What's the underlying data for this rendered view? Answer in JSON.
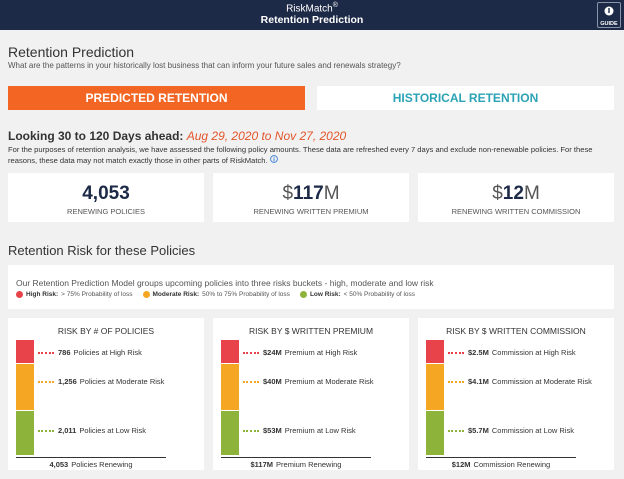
{
  "header": {
    "brand": "RiskMatch",
    "brand_mark": "®",
    "title": "Retention Prediction",
    "guide": "GUIDE"
  },
  "intro": {
    "title": "Retention Prediction",
    "subtitle": "What are the patterns in your historically lost business that can inform your future sales and renewals strategy?"
  },
  "tabs": [
    "PREDICTED RETENTION",
    "HISTORICAL RETENTION"
  ],
  "lookahead": {
    "label": "Looking 30 to 120 Days ahead:",
    "range": "Aug 29, 2020 to Nov 27, 2020",
    "note": "For the purposes of retention analysis, we have assessed the following policy amounts. These data are refreshed every 7 days and exclude non-renewable policies. For these reasons, these data may not match exactly those in other parts of RiskMatch."
  },
  "kpis": [
    {
      "value": "4,053",
      "label": "RENEWING POLICIES"
    },
    {
      "prefix": "$",
      "value": "117",
      "suffix": "M",
      "label": "RENEWING WRITTEN PREMIUM"
    },
    {
      "prefix": "$",
      "value": "12",
      "suffix": "M",
      "label": "RENEWING WRITTEN COMMISSION"
    }
  ],
  "risk": {
    "title": "Retention Risk for these Policies",
    "description": "Our Retention Prediction Model groups upcoming policies into three risks buckets - high, moderate and low risk",
    "legend": [
      {
        "name": "High Risk:",
        "text": "> 75% Probability of loss",
        "color": "#e8434a"
      },
      {
        "name": "Moderate Risk:",
        "text": "50% to 75% Probability of loss",
        "color": "#f5a623"
      },
      {
        "name": "Low Risk:",
        "text": "< 50% Probability of loss",
        "color": "#8db33a"
      }
    ]
  },
  "panels": [
    {
      "title": "RISK BY # OF POLICIES",
      "rows": [
        {
          "value": "786",
          "label": "Policies at High Risk"
        },
        {
          "value": "1,256",
          "label": "Policies at Moderate Risk"
        },
        {
          "value": "2,011",
          "label": "Policies at Low Risk"
        }
      ],
      "total": {
        "value": "4,053",
        "label": "Policies Renewing"
      }
    },
    {
      "title": "RISK BY $ WRITTEN PREMIUM",
      "rows": [
        {
          "value": "$24M",
          "label": "Premium at High Risk"
        },
        {
          "value": "$40M",
          "label": "Premium at Moderate Risk"
        },
        {
          "value": "$53M",
          "label": "Premium at Low Risk"
        }
      ],
      "total": {
        "value": "$117M",
        "label": "Premium Renewing"
      }
    },
    {
      "title": "RISK BY $ WRITTEN COMMISSION",
      "rows": [
        {
          "value": "$2.5M",
          "label": "Commission at High Risk"
        },
        {
          "value": "$4.1M",
          "label": "Commission at Moderate Risk"
        },
        {
          "value": "$5.7M",
          "label": "Commission at Low Risk"
        }
      ],
      "total": {
        "value": "$12M",
        "label": "Commission Renewing"
      }
    }
  ]
}
